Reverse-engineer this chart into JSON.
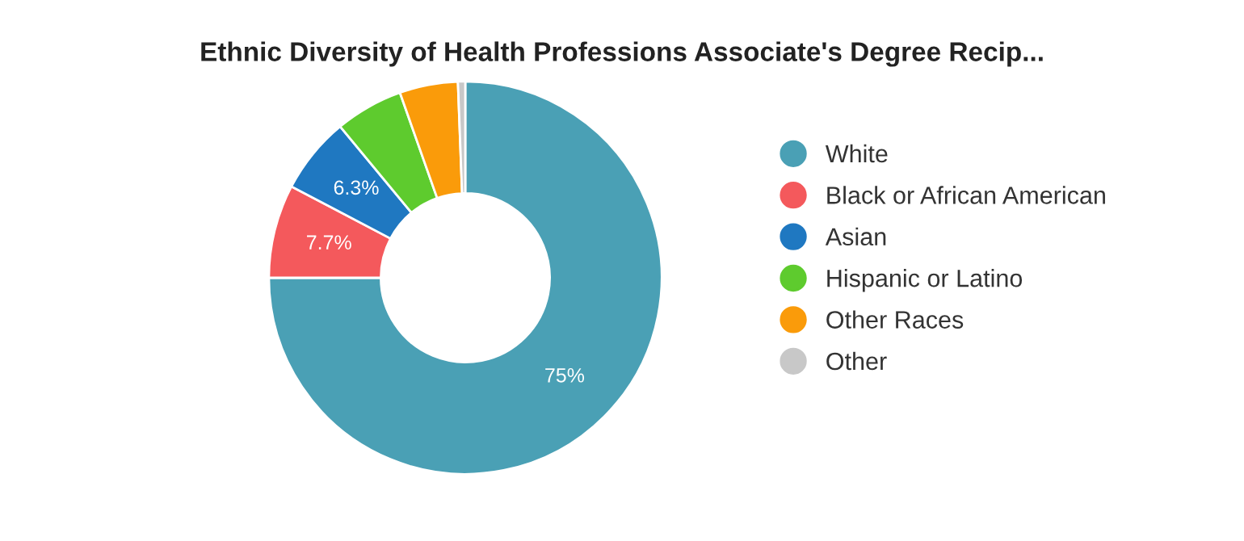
{
  "chart_data": {
    "type": "donut",
    "title": "Ethnic Diversity of Health Professions Associate's Degree Recip...",
    "categories": [
      "White",
      "Black or African American",
      "Asian",
      "Hispanic or Latino",
      "Other Races",
      "Other"
    ],
    "values": [
      75,
      7.7,
      6.3,
      5.6,
      4.8,
      0.6
    ],
    "colors": [
      "#4aa0b5",
      "#f4595c",
      "#1f78c1",
      "#5ecb2e",
      "#fa9b0a",
      "#c8c8c8"
    ],
    "value_labels": [
      "75%",
      "7.7%",
      "6.3%",
      null,
      null,
      null
    ],
    "legend": "right"
  }
}
